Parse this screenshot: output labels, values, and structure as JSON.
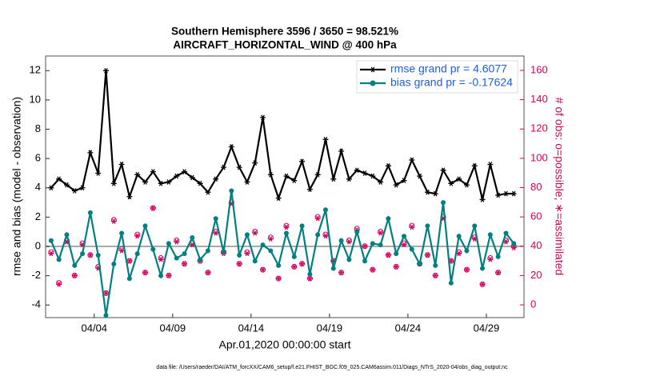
{
  "chart_data": {
    "type": "line",
    "title": "Southern Hemisphere 3596 / 3650 = 98.521%",
    "subtitle": "AIRCRAFT_HORIZONTAL_WIND @ 400 hPa",
    "x_label": "Apr.01,2020 00:00:00 start",
    "y_label": "rmse and bias (model - observation)",
    "y2_label": "# of obs: o=possible; ∗=assimilated",
    "footnote": "data file: /Users/raeder/DAI/ATM_forcXX/CAM6_setup/f.e21.FHIST_BGC.f09_025.CAM6assim.011/Diags_NTrS_2020-04/obs_diag_output.nc",
    "x": [
      1.25,
      1.75,
      2.25,
      2.75,
      3.25,
      3.75,
      4.25,
      4.75,
      5.25,
      5.75,
      6.25,
      6.75,
      7.25,
      7.75,
      8.25,
      8.75,
      9.25,
      9.75,
      10.25,
      10.75,
      11.25,
      11.75,
      12.25,
      12.75,
      13.25,
      13.75,
      14.25,
      14.75,
      15.25,
      15.75,
      16.25,
      16.75,
      17.25,
      17.75,
      18.25,
      18.75,
      19.25,
      19.75,
      20.25,
      20.75,
      21.25,
      21.75,
      22.25,
      22.75,
      23.25,
      23.75,
      24.25,
      24.75,
      25.25,
      25.75,
      26.25,
      26.75,
      27.25,
      27.75,
      28.25,
      28.75,
      29.25,
      29.75,
      30.25,
      30.75
    ],
    "xlim": [
      0.9,
      31.4
    ],
    "xticks": [
      {
        "value": 4,
        "label": "04/04"
      },
      {
        "value": 9,
        "label": "04/09"
      },
      {
        "value": 14,
        "label": "04/14"
      },
      {
        "value": 19,
        "label": "04/19"
      },
      {
        "value": 24,
        "label": "04/24"
      },
      {
        "value": 29,
        "label": "04/29"
      }
    ],
    "ylim": [
      -4.86,
      13
    ],
    "yticks": [
      -4,
      -2,
      0,
      2,
      4,
      6,
      8,
      10,
      12
    ],
    "y2lim": [
      -8.7,
      169.8
    ],
    "y2ticks": [
      0,
      20,
      40,
      60,
      80,
      100,
      120,
      140,
      160
    ],
    "legend": "upper right",
    "series": [
      {
        "name": "rmse grand pr = 4.6077",
        "color": "#000000",
        "marker": "asterisk",
        "values": [
          4.0,
          4.6,
          4.2,
          3.8,
          4.0,
          6.4,
          5.0,
          12.0,
          4.3,
          5.6,
          3.4,
          4.9,
          4.4,
          5.1,
          4.3,
          4.4,
          4.8,
          5.1,
          4.7,
          4.3,
          3.7,
          4.6,
          5.4,
          6.8,
          5.4,
          4.4,
          5.7,
          8.8,
          4.9,
          3.3,
          4.8,
          4.5,
          5.8,
          3.9,
          4.9,
          7.3,
          4.6,
          6.5,
          4.6,
          5.2,
          5.0,
          4.8,
          4.4,
          5.5,
          4.2,
          4.5,
          5.9,
          4.8,
          3.7,
          3.6,
          5.2,
          4.3,
          4.6,
          4.2,
          5.5,
          3.2,
          5.6,
          3.5,
          3.6,
          3.6
        ]
      },
      {
        "name": "bias grand pr = -0.17624",
        "color": "#008080",
        "marker": "circle",
        "values": [
          0.4,
          -0.9,
          0.8,
          -1.3,
          -0.5,
          2.3,
          -0.6,
          -4.7,
          -1.2,
          0.9,
          -2.2,
          -0.5,
          1.4,
          -0.2,
          -2.0,
          0.2,
          -0.8,
          -0.5,
          0.6,
          -0.9,
          -0.3,
          1.9,
          -0.4,
          3.8,
          -0.6,
          0.8,
          -1.0,
          0.1,
          -0.3,
          -1.3,
          0.9,
          -0.7,
          1.4,
          -1.9,
          0.8,
          2.5,
          -1.5,
          0.4,
          -0.9,
          1.0,
          -1.0,
          0.2,
          0.1,
          1.9,
          -0.5,
          0.7,
          -0.2,
          -1.2,
          1.4,
          -1.3,
          3.0,
          -2.5,
          0.7,
          -0.3,
          1.4,
          -1.5,
          0.8,
          -0.7,
          0.9,
          0.2
        ]
      },
      {
        "name": "possible",
        "color": "#d6005a",
        "marker": "open-circle",
        "axis": "y2",
        "line": false,
        "values": [
          36,
          15,
          44,
          20,
          42,
          34,
          26,
          8,
          58,
          38,
          30,
          48,
          22,
          66,
          32,
          20,
          44,
          28,
          42,
          30,
          22,
          50,
          36,
          70,
          28,
          36,
          50,
          24,
          46,
          18,
          54,
          26,
          28,
          18,
          60,
          48,
          30,
          22,
          44,
          52,
          40,
          24,
          50,
          34,
          26,
          42,
          54,
          28,
          34,
          20,
          60,
          30,
          36,
          24,
          46,
          14,
          32,
          22,
          44,
          40
        ]
      },
      {
        "name": "assimilated",
        "color": "#d6005a",
        "marker": "asterisk",
        "axis": "y2",
        "line": false,
        "values": [
          35,
          14,
          43,
          20,
          41,
          34,
          25,
          8,
          57,
          37,
          30,
          47,
          22,
          66,
          31,
          20,
          43,
          28,
          41,
          30,
          22,
          49,
          35,
          69,
          28,
          35,
          49,
          24,
          45,
          18,
          53,
          26,
          28,
          18,
          59,
          47,
          30,
          22,
          43,
          51,
          40,
          24,
          49,
          34,
          26,
          41,
          53,
          28,
          34,
          20,
          59,
          30,
          35,
          24,
          45,
          14,
          31,
          22,
          43,
          39
        ]
      }
    ],
    "zero_line": true
  }
}
